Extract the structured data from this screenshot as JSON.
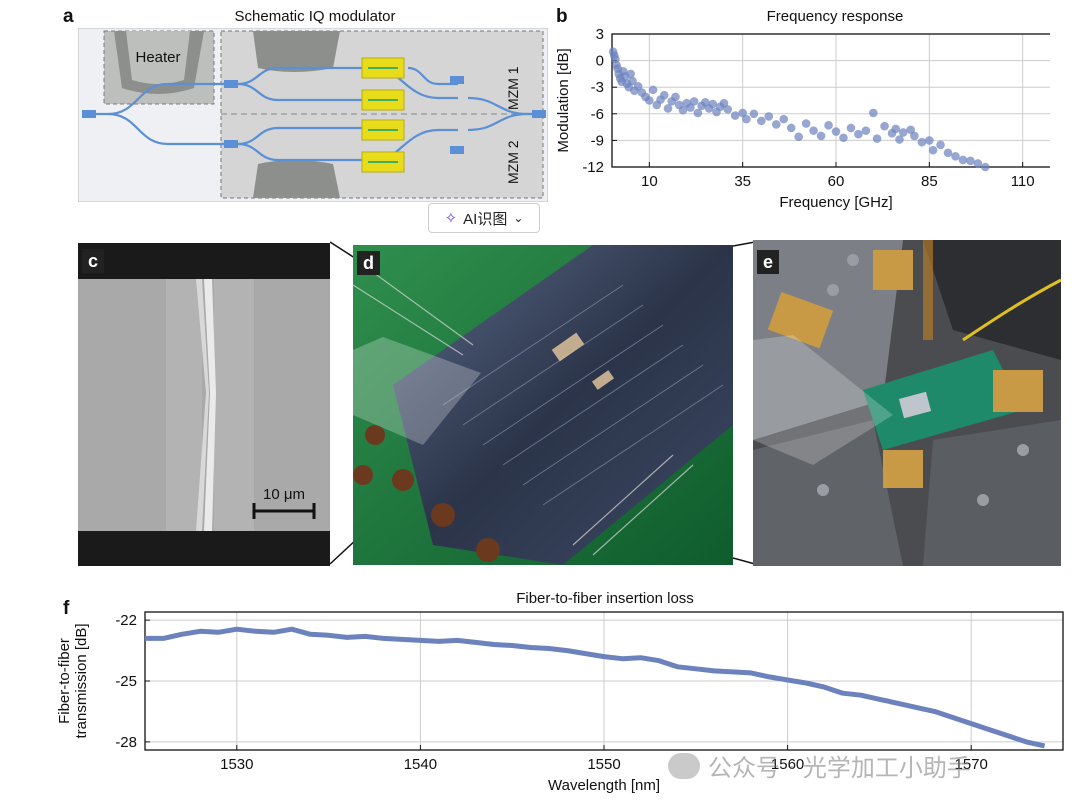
{
  "panel_a": {
    "letter": "a",
    "title": "Schematic IQ modulator",
    "heater_label": "Heater",
    "mzm1_label": "MZM 1",
    "mzm2_label": "MZM 2"
  },
  "panel_b": {
    "letter": "b"
  },
  "panel_c": {
    "letter": "c",
    "scale_label": "10 μm"
  },
  "panel_d": {
    "letter": "d"
  },
  "panel_e": {
    "letter": "e"
  },
  "panel_f": {
    "letter": "f"
  },
  "ai_button": {
    "label": "AI识图",
    "sparkle": "sparkle-icon",
    "chevron": "chevron-down-icon"
  },
  "watermark": {
    "text": "公众号 · 光学加工小助手",
    "icon": "wechat-icon"
  },
  "colors": {
    "series": "#6b82bd",
    "waveguide": "#5b8fd6",
    "electrode": "#e8dc1a",
    "grid": "#cccccc"
  },
  "chart_data": [
    {
      "type": "scatter",
      "title": "Frequency response",
      "xlabel": "Frequency [GHz]",
      "ylabel": "Modulation [dB]",
      "xlim": [
        0,
        120
      ],
      "ylim": [
        -12,
        3
      ],
      "xticks": [
        10,
        35,
        60,
        85,
        110
      ],
      "yticks": [
        3,
        0,
        -3,
        -6,
        -9,
        -12
      ],
      "grid": true,
      "x": [
        0.3,
        0.6,
        0.9,
        1.2,
        1.5,
        1.8,
        2.2,
        2.6,
        3,
        3.5,
        4,
        4.5,
        5,
        5.5,
        6,
        7,
        8,
        9,
        10,
        11,
        12,
        13,
        14,
        15,
        16,
        17,
        18,
        19,
        20,
        21,
        22,
        23,
        24,
        25,
        26,
        27,
        28,
        29,
        30,
        31,
        33,
        35,
        36,
        38,
        40,
        42,
        44,
        46,
        48,
        50,
        52,
        54,
        56,
        58,
        60,
        62,
        64,
        66,
        68,
        70,
        71,
        73,
        75,
        76,
        77,
        78,
        80,
        81,
        83,
        85,
        86,
        88,
        90,
        92,
        94,
        96,
        98,
        100
      ],
      "y": [
        1.0,
        0.6,
        0.2,
        -0.5,
        -0.9,
        -1.5,
        -2.0,
        -2.4,
        -1.2,
        -1.8,
        -2.6,
        -3.0,
        -1.5,
        -2.3,
        -3.4,
        -2.9,
        -3.6,
        -4.1,
        -4.5,
        -3.3,
        -5.0,
        -4.4,
        -3.9,
        -5.4,
        -4.6,
        -4.1,
        -5.0,
        -5.6,
        -4.8,
        -5.3,
        -4.6,
        -5.9,
        -5.1,
        -4.7,
        -5.4,
        -4.9,
        -5.8,
        -5.2,
        -4.8,
        -5.5,
        -6.2,
        -5.9,
        -6.6,
        -6.0,
        -6.8,
        -6.3,
        -7.2,
        -6.6,
        -7.6,
        -8.6,
        -7.1,
        -7.9,
        -8.5,
        -7.3,
        -8.0,
        -8.7,
        -7.6,
        -8.3,
        -7.9,
        -5.9,
        -8.8,
        -7.4,
        -8.2,
        -7.7,
        -8.9,
        -8.1,
        -7.8,
        -8.5,
        -9.2,
        -9.0,
        -10.1,
        -9.5,
        -10.4,
        -10.8,
        -11.2,
        -11.3,
        -11.6,
        -12.0
      ]
    },
    {
      "type": "line",
      "title": "Fiber-to-fiber insertion loss",
      "xlabel": "Wavelength [nm]",
      "ylabel": "Fiber-to-fiber\ntransmission [dB]",
      "xlim": [
        1525,
        1575
      ],
      "ylim": [
        -28.4,
        -21.6
      ],
      "xticks": [
        1530,
        1540,
        1550,
        1560,
        1570
      ],
      "yticks": [
        -22,
        -25,
        -28
      ],
      "grid": true,
      "x": [
        1525,
        1526,
        1527,
        1528,
        1529,
        1530,
        1531,
        1532,
        1533,
        1534,
        1535,
        1536,
        1537,
        1538,
        1539,
        1540,
        1541,
        1542,
        1543,
        1544,
        1545,
        1546,
        1547,
        1548,
        1549,
        1550,
        1551,
        1552,
        1553,
        1554,
        1555,
        1556,
        1557,
        1558,
        1559,
        1560,
        1561,
        1562,
        1563,
        1564,
        1565,
        1566,
        1567,
        1568,
        1569,
        1570,
        1571,
        1572,
        1573,
        1574
      ],
      "y": [
        -22.9,
        -22.9,
        -22.7,
        -22.55,
        -22.6,
        -22.45,
        -22.55,
        -22.6,
        -22.45,
        -22.7,
        -22.75,
        -22.85,
        -22.8,
        -22.9,
        -22.95,
        -23.0,
        -23.05,
        -23.0,
        -23.1,
        -23.2,
        -23.25,
        -23.35,
        -23.4,
        -23.5,
        -23.65,
        -23.8,
        -23.9,
        -23.85,
        -24.0,
        -24.3,
        -24.4,
        -24.5,
        -24.55,
        -24.6,
        -24.8,
        -24.95,
        -25.1,
        -25.3,
        -25.6,
        -25.7,
        -25.9,
        -26.1,
        -26.3,
        -26.5,
        -26.8,
        -27.1,
        -27.4,
        -27.7,
        -28.0,
        -28.2
      ]
    }
  ]
}
